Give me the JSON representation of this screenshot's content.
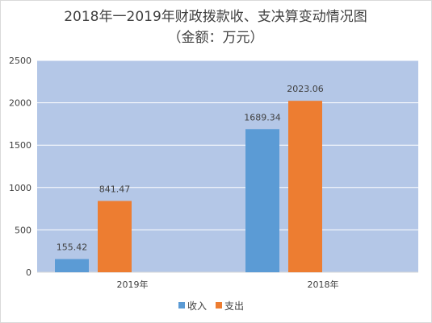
{
  "chart_data": {
    "type": "bar",
    "title": "2018年一2019年财政拨款收、支决算变动情况图",
    "subtitle": "（金额：万元）",
    "categories": [
      "2019年",
      "2018年"
    ],
    "series": [
      {
        "name": "收入",
        "values": [
          155.42,
          1689.34
        ],
        "color": "#5b9bd5"
      },
      {
        "name": "支出",
        "values": [
          841.47,
          2023.06
        ],
        "color": "#ed7d31"
      }
    ],
    "data_labels": [
      [
        "155.42",
        "1689.34"
      ],
      [
        "841.47",
        "2023.06"
      ]
    ],
    "ylim": [
      0,
      2500
    ],
    "yticks": [
      0,
      500,
      1000,
      1500,
      2000,
      2500
    ],
    "xlabel": "",
    "ylabel": "",
    "grid": true,
    "plot_background": "#b4c7e7",
    "legend_position": "bottom"
  }
}
